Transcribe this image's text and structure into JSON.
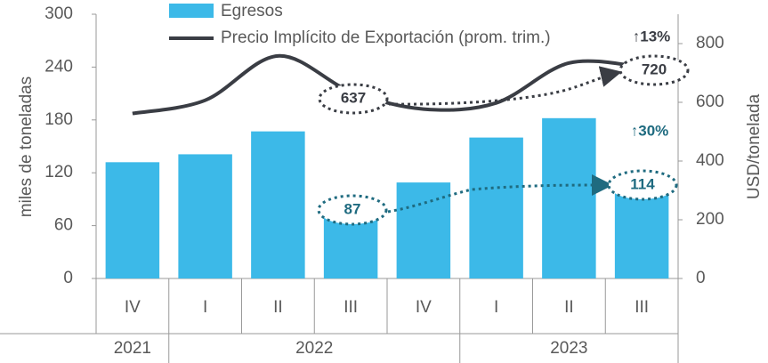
{
  "chart_data": {
    "type": "bar_line",
    "categories": [
      "IV",
      "I",
      "II",
      "III",
      "IV",
      "I",
      "II",
      "III"
    ],
    "groups": [
      {
        "label": "2021",
        "span": 1
      },
      {
        "label": "2022",
        "span": 4
      },
      {
        "label": "2023",
        "span": 3
      }
    ],
    "series": [
      {
        "name": "Egresos",
        "type": "bar",
        "color": "#3cb9e8",
        "values": [
          132,
          141,
          167,
          87,
          109,
          160,
          182,
          114
        ]
      },
      {
        "name": "Precio Implícito de Exportación (prom. trim.)",
        "type": "line",
        "axis": "y2",
        "color": "#3a3d44",
        "values": [
          562,
          607,
          758,
          637,
          577,
          598,
          734,
          720
        ]
      }
    ],
    "ylabel": "miles de toneladas",
    "y2label": "USD/tonelada",
    "ylim": [
      0,
      300
    ],
    "yticks": [
      0,
      60,
      120,
      180,
      240,
      300
    ],
    "y2lim": [
      0,
      900
    ],
    "y2ticks": [
      0,
      200,
      400,
      600,
      800
    ],
    "annotations": [
      {
        "text": "637"
      },
      {
        "text": "720"
      },
      {
        "text": "↑13%"
      },
      {
        "text": "87"
      },
      {
        "text": "114"
      },
      {
        "text": "↑30%"
      }
    ]
  }
}
